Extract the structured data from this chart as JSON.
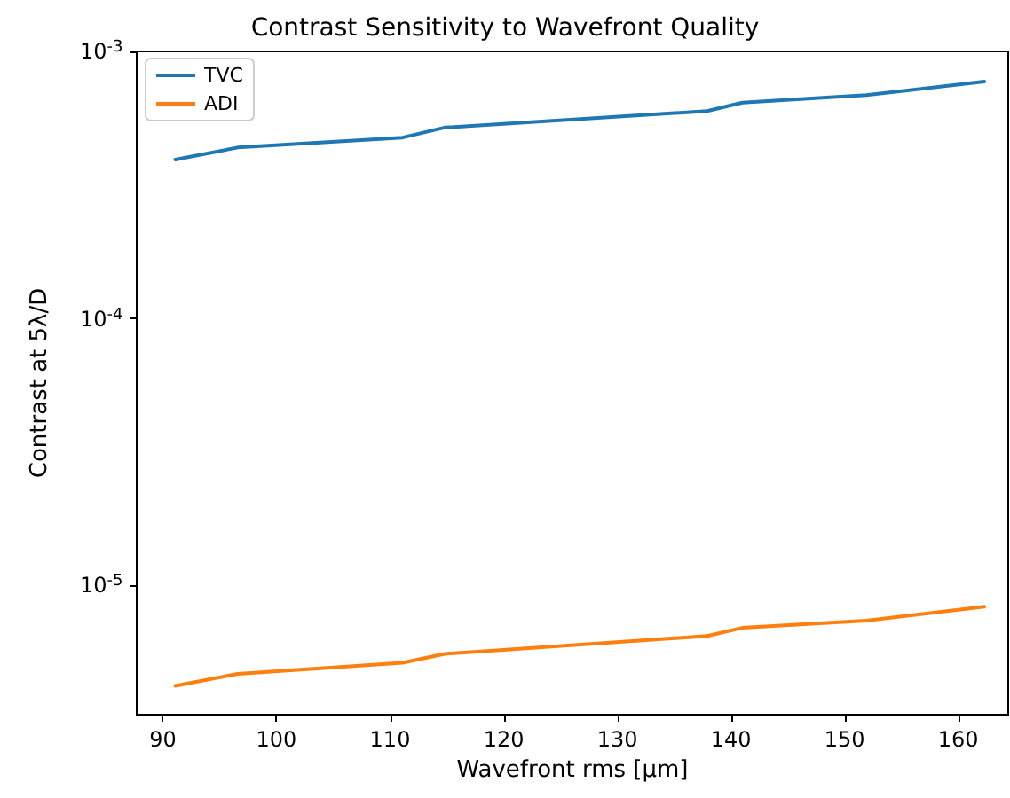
{
  "chart_data": {
    "type": "line",
    "title": "Contrast Sensitivity to Wavefront Quality",
    "xlabel": "Wavefront rms [μm]",
    "ylabel": "Contrast at 5λ/D",
    "x": [
      91.1,
      96.6,
      111.1,
      114.8,
      137.9,
      141.0,
      151.9,
      162.3
    ],
    "series": [
      {
        "name": "TVC",
        "color": "#1f77b4",
        "values": [
          0.000394,
          0.000437,
          0.000476,
          0.000519,
          0.000598,
          0.000643,
          0.000686,
          0.000771
        ]
      },
      {
        "name": "ADI",
        "color": "#ff7f0e",
        "values": [
          4.23e-06,
          4.69e-06,
          5.16e-06,
          5.57e-06,
          6.5e-06,
          6.97e-06,
          7.41e-06,
          8.37e-06
        ]
      }
    ],
    "xlim": [
      87.7,
      164.4
    ],
    "xticks": [
      90,
      100,
      110,
      120,
      130,
      140,
      150,
      160
    ],
    "ylim": [
      3.3e-06,
      0.001
    ],
    "yticks": [
      {
        "value": 1e-05,
        "label": "10$^{-5}$"
      },
      {
        "value": 0.0001,
        "label": "10$^{-4}$"
      },
      {
        "value": 0.001,
        "label": "10$^{-3}$"
      }
    ],
    "log": "y",
    "grid": false,
    "legend": "top left",
    "marker": "none",
    "line_style": "solid"
  }
}
